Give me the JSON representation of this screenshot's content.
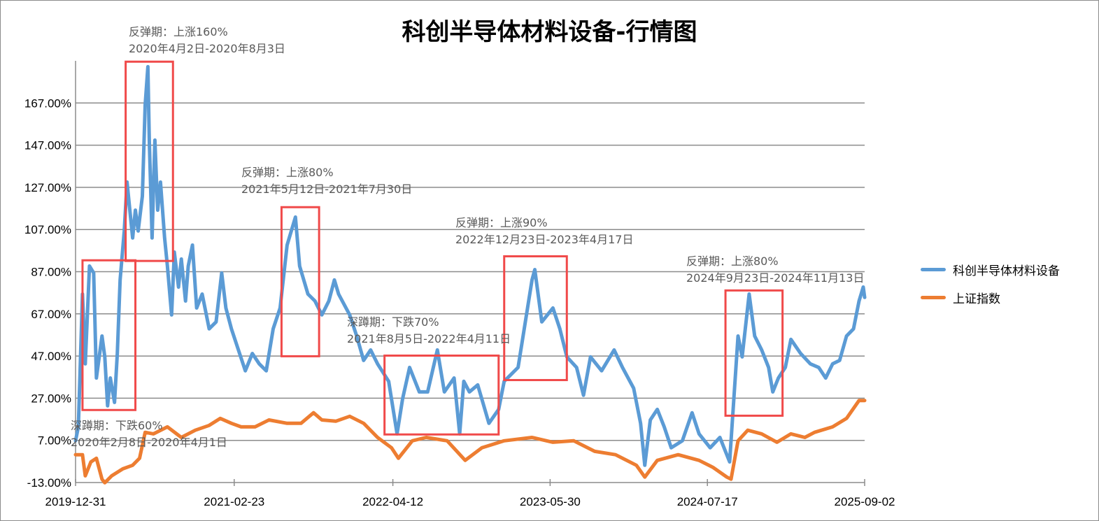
{
  "chart_data": {
    "type": "line",
    "title": "科创半导体材料设备-行情图",
    "xlabel": "",
    "ylabel": "",
    "x_unit": "decimal year",
    "xlim": [
      2020.0,
      2025.67
    ],
    "ylim": [
      -13,
      187
    ],
    "y_ticks": [
      -13,
      7,
      27,
      47,
      67,
      87,
      107,
      127,
      147,
      167
    ],
    "y_tick_labels": [
      "-13.00%",
      "7.00%",
      "27.00%",
      "47.00%",
      "67.00%",
      "87.00%",
      "107.00%",
      "127.00%",
      "147.00%",
      "167.00%"
    ],
    "x_ticks": [
      2020.0,
      2021.14,
      2022.28,
      2023.41,
      2024.54,
      2025.67
    ],
    "x_tick_labels": [
      "2019-12-31",
      "2021-02-23",
      "2022-04-12",
      "2023-05-30",
      "2024-07-17",
      "2025-09-02"
    ],
    "grid": true,
    "legend_position": "right",
    "series": [
      {
        "name": "科创半导体材料设备",
        "color": "#5b9bd5",
        "points": [
          [
            2020.0,
            6.8
          ],
          [
            2020.02,
            13.4
          ],
          [
            2020.05,
            76.4
          ],
          [
            2020.07,
            43.3
          ],
          [
            2020.1,
            89.7
          ],
          [
            2020.13,
            86.4
          ],
          [
            2020.15,
            36.6
          ],
          [
            2020.19,
            56.5
          ],
          [
            2020.21,
            46.6
          ],
          [
            2020.23,
            23.4
          ],
          [
            2020.25,
            36.6
          ],
          [
            2020.28,
            25.0
          ],
          [
            2020.3,
            48.2
          ],
          [
            2020.32,
            83.1
          ],
          [
            2020.35,
            106.3
          ],
          [
            2020.37,
            129.5
          ],
          [
            2020.39,
            116.2
          ],
          [
            2020.41,
            103.0
          ],
          [
            2020.43,
            116.2
          ],
          [
            2020.45,
            106.3
          ],
          [
            2020.48,
            122.8
          ],
          [
            2020.5,
            166.0
          ],
          [
            2020.52,
            184.2
          ],
          [
            2020.53,
            149.4
          ],
          [
            2020.55,
            103.0
          ],
          [
            2020.57,
            149.4
          ],
          [
            2020.59,
            116.2
          ],
          [
            2020.61,
            129.5
          ],
          [
            2020.64,
            103.0
          ],
          [
            2020.66,
            89.7
          ],
          [
            2020.69,
            66.5
          ],
          [
            2020.71,
            96.3
          ],
          [
            2020.74,
            79.7
          ],
          [
            2020.76,
            93.0
          ],
          [
            2020.79,
            73.1
          ],
          [
            2020.81,
            89.7
          ],
          [
            2020.84,
            99.6
          ],
          [
            2020.87,
            69.8
          ],
          [
            2020.91,
            76.4
          ],
          [
            2020.96,
            59.9
          ],
          [
            2021.01,
            63.2
          ],
          [
            2021.05,
            86.4
          ],
          [
            2021.08,
            69.8
          ],
          [
            2021.12,
            59.9
          ],
          [
            2021.17,
            49.9
          ],
          [
            2021.22,
            40.0
          ],
          [
            2021.27,
            48.2
          ],
          [
            2021.32,
            43.3
          ],
          [
            2021.37,
            40.0
          ],
          [
            2021.42,
            59.9
          ],
          [
            2021.47,
            69.8
          ],
          [
            2021.52,
            99.6
          ],
          [
            2021.58,
            112.9
          ],
          [
            2021.61,
            89.7
          ],
          [
            2021.67,
            76.4
          ],
          [
            2021.72,
            73.1
          ],
          [
            2021.77,
            66.5
          ],
          [
            2021.82,
            73.1
          ],
          [
            2021.86,
            83.1
          ],
          [
            2021.89,
            76.4
          ],
          [
            2021.97,
            66.5
          ],
          [
            2022.02,
            56.5
          ],
          [
            2022.07,
            44.9
          ],
          [
            2022.12,
            49.9
          ],
          [
            2022.17,
            43.3
          ],
          [
            2022.25,
            35.0
          ],
          [
            2022.31,
            10.1
          ],
          [
            2022.35,
            26.7
          ],
          [
            2022.4,
            41.6
          ],
          [
            2022.47,
            30.0
          ],
          [
            2022.53,
            30.0
          ],
          [
            2022.6,
            49.9
          ],
          [
            2022.65,
            30.0
          ],
          [
            2022.72,
            36.6
          ],
          [
            2022.76,
            10.1
          ],
          [
            2022.79,
            35.0
          ],
          [
            2022.83,
            30.0
          ],
          [
            2022.89,
            33.3
          ],
          [
            2022.97,
            15.1
          ],
          [
            2023.04,
            21.7
          ],
          [
            2023.08,
            35.0
          ],
          [
            2023.18,
            41.6
          ],
          [
            2023.28,
            83.1
          ],
          [
            2023.3,
            88.0
          ],
          [
            2023.35,
            63.2
          ],
          [
            2023.43,
            69.8
          ],
          [
            2023.48,
            59.9
          ],
          [
            2023.53,
            46.6
          ],
          [
            2023.6,
            41.6
          ],
          [
            2023.65,
            28.4
          ],
          [
            2023.7,
            46.6
          ],
          [
            2023.78,
            40.0
          ],
          [
            2023.87,
            49.9
          ],
          [
            2023.93,
            41.6
          ],
          [
            2024.01,
            31.7
          ],
          [
            2024.06,
            15.1
          ],
          [
            2024.09,
            -4.8
          ],
          [
            2024.13,
            16.7
          ],
          [
            2024.18,
            21.7
          ],
          [
            2024.23,
            13.4
          ],
          [
            2024.28,
            3.5
          ],
          [
            2024.36,
            6.8
          ],
          [
            2024.43,
            20.1
          ],
          [
            2024.48,
            10.1
          ],
          [
            2024.56,
            3.5
          ],
          [
            2024.63,
            8.4
          ],
          [
            2024.7,
            -3.2
          ],
          [
            2024.72,
            16.7
          ],
          [
            2024.76,
            56.5
          ],
          [
            2024.79,
            46.6
          ],
          [
            2024.84,
            76.4
          ],
          [
            2024.88,
            56.5
          ],
          [
            2024.93,
            49.9
          ],
          [
            2024.98,
            41.6
          ],
          [
            2025.01,
            30.0
          ],
          [
            2025.05,
            36.6
          ],
          [
            2025.1,
            41.6
          ],
          [
            2025.14,
            54.9
          ],
          [
            2025.21,
            48.2
          ],
          [
            2025.28,
            43.3
          ],
          [
            2025.34,
            41.6
          ],
          [
            2025.39,
            36.6
          ],
          [
            2025.44,
            43.3
          ],
          [
            2025.49,
            44.9
          ],
          [
            2025.54,
            56.5
          ],
          [
            2025.59,
            59.9
          ],
          [
            2025.63,
            73.1
          ],
          [
            2025.66,
            79.7
          ],
          [
            2025.67,
            74.8
          ]
        ]
      },
      {
        "name": "上证指数",
        "color": "#ed7d31",
        "points": [
          [
            2020.0,
            0.2
          ],
          [
            2020.05,
            0.2
          ],
          [
            2020.07,
            -9.8
          ],
          [
            2020.11,
            -3.2
          ],
          [
            2020.15,
            -1.5
          ],
          [
            2020.19,
            -11.4
          ],
          [
            2020.21,
            -13.1
          ],
          [
            2020.26,
            -9.8
          ],
          [
            2020.34,
            -6.5
          ],
          [
            2020.41,
            -4.8
          ],
          [
            2020.46,
            -1.5
          ],
          [
            2020.5,
            10.8
          ],
          [
            2020.56,
            10.1
          ],
          [
            2020.66,
            13.4
          ],
          [
            2020.76,
            8.4
          ],
          [
            2020.86,
            11.8
          ],
          [
            2020.96,
            14.1
          ],
          [
            2021.04,
            17.4
          ],
          [
            2021.12,
            15.1
          ],
          [
            2021.19,
            13.4
          ],
          [
            2021.29,
            13.4
          ],
          [
            2021.39,
            16.7
          ],
          [
            2021.52,
            15.1
          ],
          [
            2021.62,
            15.1
          ],
          [
            2021.71,
            20.1
          ],
          [
            2021.77,
            16.7
          ],
          [
            2021.87,
            16.1
          ],
          [
            2021.97,
            18.4
          ],
          [
            2022.07,
            15.1
          ],
          [
            2022.17,
            8.4
          ],
          [
            2022.27,
            3.5
          ],
          [
            2022.32,
            -1.5
          ],
          [
            2022.42,
            6.8
          ],
          [
            2022.52,
            8.4
          ],
          [
            2022.67,
            6.8
          ],
          [
            2022.8,
            -2.5
          ],
          [
            2022.92,
            3.5
          ],
          [
            2023.08,
            6.8
          ],
          [
            2023.28,
            8.4
          ],
          [
            2023.43,
            6.1
          ],
          [
            2023.58,
            6.8
          ],
          [
            2023.73,
            1.8
          ],
          [
            2023.88,
            0.2
          ],
          [
            2024.03,
            -4.8
          ],
          [
            2024.09,
            -10.4
          ],
          [
            2024.18,
            -2.5
          ],
          [
            2024.33,
            0.2
          ],
          [
            2024.48,
            -2.5
          ],
          [
            2024.58,
            -5.8
          ],
          [
            2024.68,
            -10.4
          ],
          [
            2024.71,
            -11.4
          ],
          [
            2024.76,
            6.8
          ],
          [
            2024.83,
            11.8
          ],
          [
            2024.93,
            10.1
          ],
          [
            2025.04,
            6.1
          ],
          [
            2025.14,
            10.1
          ],
          [
            2025.24,
            8.4
          ],
          [
            2025.31,
            10.8
          ],
          [
            2025.44,
            13.4
          ],
          [
            2025.54,
            17.4
          ],
          [
            2025.63,
            25.9
          ],
          [
            2025.67,
            25.9
          ]
        ]
      }
    ],
    "highlight_color": "#f04a4a",
    "highlight_boxes": [
      {
        "x": [
          2020.05,
          2020.43
        ],
        "y": [
          21.4,
          92.4
        ]
      },
      {
        "x": [
          2020.36,
          2020.7
        ],
        "y": [
          92.1,
          186.6
        ]
      },
      {
        "x": [
          2021.48,
          2021.75
        ],
        "y": [
          46.9,
          117.6
        ]
      },
      {
        "x": [
          2022.22,
          2023.04
        ],
        "y": [
          9.8,
          47.2
        ]
      },
      {
        "x": [
          2023.08,
          2023.53
        ],
        "y": [
          35.6,
          94.3
        ]
      },
      {
        "x": [
          2024.67,
          2025.08
        ],
        "y": [
          18.7,
          78.1
        ]
      }
    ],
    "annotations": [
      {
        "line1": "深蹲期：下跌60%",
        "line2": "2020年2月8日-2020年4月1日"
      },
      {
        "line1": "反弹期：上涨160%",
        "line2": "2020年4月2日-2020年8月3日"
      },
      {
        "line1": "反弹期：上涨80%",
        "line2": "2021年5月12日-2021年7月30日"
      },
      {
        "line1": "深蹲期：下跌70%",
        "line2": "2021年8月5日-2022年4月11日"
      },
      {
        "line1": "反弹期：上涨90%",
        "line2": "2022年12月23日-2023年4月17日"
      },
      {
        "line1": "反弹期：上涨80%",
        "line2": "2024年9月23日-2024年11月13日"
      }
    ]
  }
}
